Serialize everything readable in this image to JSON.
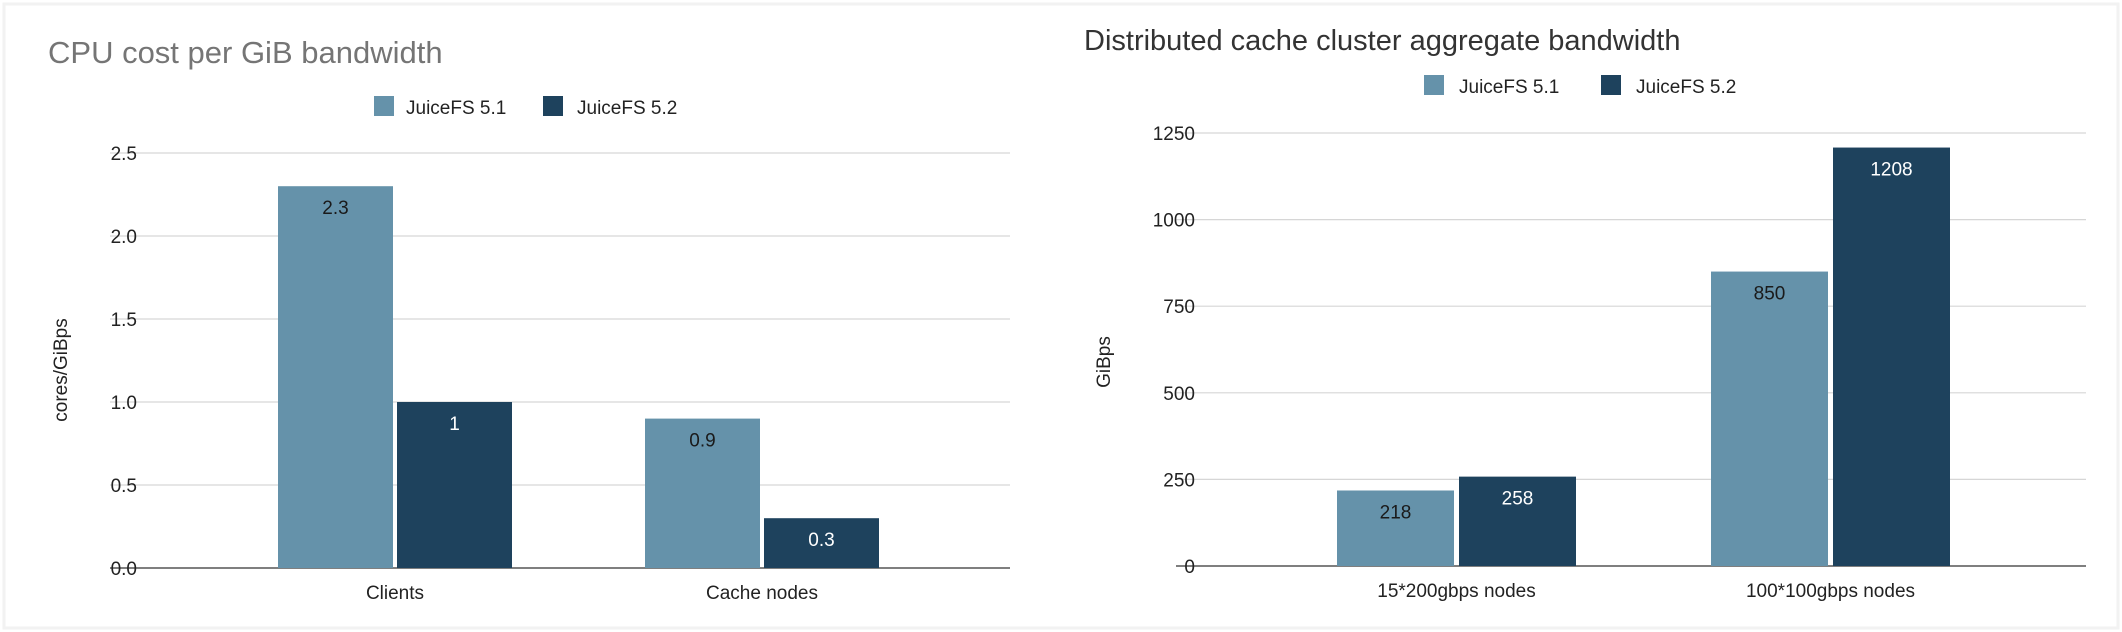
{
  "colors": {
    "series_1": "#6592aa",
    "series_2": "#1e425d",
    "grid": "#d6d6d6",
    "axis": "#555555",
    "text": "#222222",
    "title_left": "#757575",
    "title_right": "#333333",
    "background": "#ffffff",
    "frame": "#f2f2f2"
  },
  "chart_data": [
    {
      "type": "bar",
      "title": "CPU cost per GiB bandwidth",
      "xlabel": "",
      "ylabel": "cores/GiBps",
      "categories": [
        "Clients",
        "Cache nodes"
      ],
      "series": [
        {
          "name": "JuiceFS 5.1",
          "values": [
            2.3,
            0.9
          ]
        },
        {
          "name": "JuiceFS 5.2",
          "values": [
            1,
            0.3
          ]
        }
      ],
      "data_labels": [
        [
          "2.3",
          "0.9"
        ],
        [
          "1",
          "0.3"
        ]
      ],
      "ylim": [
        0,
        2.5
      ],
      "yticks": [
        "0.0",
        "0.5",
        "1.0",
        "1.5",
        "2.0",
        "2.5"
      ],
      "grid": true,
      "legend": "top-center"
    },
    {
      "type": "bar",
      "title": "Distributed cache cluster aggregate bandwidth",
      "xlabel": "",
      "ylabel": "GiBps",
      "categories": [
        "15*200gbps nodes",
        "100*100gbps nodes"
      ],
      "series": [
        {
          "name": "JuiceFS 5.1",
          "values": [
            218,
            850
          ]
        },
        {
          "name": "JuiceFS 5.2",
          "values": [
            258,
            1208
          ]
        }
      ],
      "data_labels": [
        [
          "218",
          "850"
        ],
        [
          "258",
          "1208"
        ]
      ],
      "ylim": [
        0,
        1250
      ],
      "yticks": [
        "0",
        "250",
        "500",
        "750",
        "1000",
        "1250"
      ],
      "grid": true,
      "legend": "top-center"
    }
  ]
}
